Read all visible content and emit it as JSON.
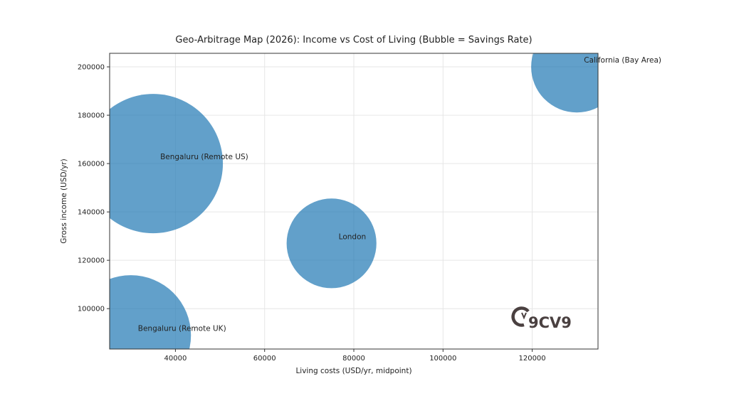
{
  "chart_data": {
    "type": "scatter",
    "title": "Geo-Arbitrage Map (2026): Income vs Cost of Living (Bubble = Savings Rate)",
    "xlabel": "Living costs (USD/yr, midpoint)",
    "ylabel": "Gross income (USD/yr)",
    "xlim": [
      25250,
      134750
    ],
    "ylim": [
      83300,
      205600
    ],
    "xticks": [
      40000,
      60000,
      80000,
      100000,
      120000
    ],
    "yticks": [
      100000,
      120000,
      140000,
      160000,
      180000,
      200000
    ],
    "grid": true,
    "bubble_color": "#1f77b4",
    "bubble_alpha": 0.7,
    "points": [
      {
        "label": "California (Bay Area)",
        "x": 130000,
        "y": 200000,
        "savings_rate": 30
      },
      {
        "label": "Bengaluru (Remote US)",
        "x": 35000,
        "y": 160000,
        "savings_rate": 70
      },
      {
        "label": "London",
        "x": 75000,
        "y": 127000,
        "savings_rate": 29
      },
      {
        "label": "Bengaluru (Remote UK)",
        "x": 30000,
        "y": 89000,
        "savings_rate": 52
      }
    ]
  },
  "watermark": {
    "text": "9CV9",
    "icon": "9cv9-logo-icon",
    "color": "#4a4040"
  }
}
